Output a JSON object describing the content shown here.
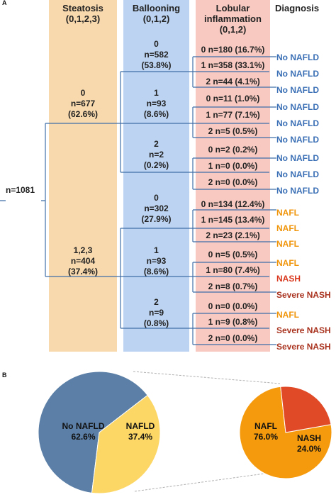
{
  "panelA": {
    "label": "A",
    "headers": {
      "steatosis": [
        "Steatosis",
        "(0,1,2,3)"
      ],
      "ballooning": [
        "Ballooning",
        "(0,1,2)"
      ],
      "lobular": [
        "Lobular",
        "inflammation",
        "(0,1,2)"
      ],
      "diagnosis": "Diagnosis"
    },
    "root": "n=1081",
    "steatosis_nodes": [
      [
        "0",
        "n=677",
        "(62.6%)"
      ],
      [
        "1,2,3",
        "n=404",
        "(37.4%)"
      ]
    ],
    "ballooning_nodes": [
      [
        "0",
        "n=582",
        "(53.8%)"
      ],
      [
        "1",
        "n=93",
        "(8.6%)"
      ],
      [
        "2",
        "n=2",
        "(0.2%)"
      ],
      [
        "0",
        "n=302",
        "(27.9%)"
      ],
      [
        "1",
        "n=93",
        "(8.6%)"
      ],
      [
        "2",
        "n=9",
        "(0.8%)"
      ]
    ],
    "lobular_nodes": [
      "0 n=180 (16.7%)",
      "1 n=358 (33.1%)",
      "2 n=44 (4.1%)",
      "0 n=11 (1.0%)",
      "1 n=77 (7.1%)",
      "2 n=5 (0.5%)",
      "0 n=2 (0.2%)",
      "1 n=0 (0.0%)",
      "2 n=0 (0.0%)",
      "0 n=134 (12.4%)",
      "1 n=145 (13.4%)",
      "2 n=23 (2.1%)",
      "0 n=5 (0.5%)",
      "1 n=80 (7.4%)",
      "2 n=8 (0.7%)",
      "0 n=0 (0.0%)",
      "1 n=9 (0.8%)",
      "2 n=0 (0.0%)"
    ],
    "diagnoses": [
      "No NAFLD",
      "No NAFLD",
      "No NAFLD",
      "No NAFLD",
      "No NAFLD",
      "No NAFLD",
      "No NAFLD",
      "No NAFLD",
      "No NAFLD",
      "NAFL",
      "NAFL",
      "NAFL",
      "NAFL",
      "NASH",
      "Severe NASH",
      "NAFL",
      "Severe NASH",
      "Severe NASH"
    ],
    "diagnosis_colors": {
      "No NAFLD": "#3a6fb5",
      "NAFL": "#f0950a",
      "NASH": "#d9381e",
      "Severe NASH": "#a8321e"
    },
    "column_colors": {
      "steatosis": "#f8d9ad",
      "ballooning": "#bcd3f1",
      "lobular": "#f7c9c0"
    },
    "line_color": "#3f6ea8"
  },
  "panelB": {
    "label": "B",
    "left_pie": [
      {
        "label": "No NAFLD",
        "value": 62.6,
        "text": "62.6%",
        "color": "#5b7fa6"
      },
      {
        "label": "NAFLD",
        "value": 37.4,
        "text": "37.4%",
        "color": "#fcd766"
      }
    ],
    "right_pie": [
      {
        "label": "NAFL",
        "value": 76.0,
        "text": "76.0%",
        "color": "#f59a0c"
      },
      {
        "label": "NASH",
        "value": 24.0,
        "text": "24.0%",
        "color": "#e04a27"
      }
    ]
  }
}
